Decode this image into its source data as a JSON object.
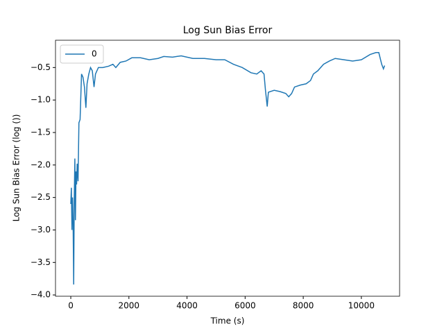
{
  "chart_data": {
    "type": "line",
    "title": "Log Sun Bias Error",
    "x_label": "Time (s)",
    "y_label": "Log Sun Bias Error (log ())",
    "x": [
      0,
      20,
      40,
      60,
      80,
      100,
      120,
      140,
      160,
      180,
      200,
      220,
      250,
      280,
      320,
      370,
      420,
      470,
      520,
      560,
      620,
      680,
      740,
      800,
      850,
      950,
      1100,
      1300,
      1450,
      1550,
      1700,
      1900,
      2100,
      2400,
      2700,
      3000,
      3200,
      3500,
      3800,
      4200,
      4600,
      5000,
      5300,
      5600,
      5900,
      6200,
      6400,
      6550,
      6650,
      6700,
      6760,
      6800,
      7000,
      7200,
      7400,
      7500,
      7600,
      7700,
      7900,
      8100,
      8250,
      8350,
      8500,
      8700,
      8900,
      9100,
      9400,
      9700,
      10000,
      10300,
      10500,
      10600,
      10700,
      10760,
      10800
    ],
    "series": [
      {
        "name": "0",
        "color": "#1f77b4",
        "values": [
          -2.6,
          -2.35,
          -3.0,
          -2.5,
          -2.9,
          -3.84,
          -2.5,
          -1.9,
          -2.85,
          -2.1,
          -2.3,
          -1.98,
          -2.25,
          -1.35,
          -1.3,
          -0.6,
          -0.65,
          -0.8,
          -1.12,
          -0.75,
          -0.6,
          -0.5,
          -0.55,
          -0.8,
          -0.6,
          -0.5,
          -0.5,
          -0.48,
          -0.45,
          -0.5,
          -0.42,
          -0.4,
          -0.35,
          -0.35,
          -0.38,
          -0.36,
          -0.33,
          -0.34,
          -0.32,
          -0.36,
          -0.36,
          -0.38,
          -0.38,
          -0.45,
          -0.5,
          -0.58,
          -0.6,
          -0.55,
          -0.6,
          -0.85,
          -1.1,
          -0.88,
          -0.85,
          -0.87,
          -0.9,
          -0.95,
          -0.9,
          -0.8,
          -0.77,
          -0.75,
          -0.7,
          -0.6,
          -0.55,
          -0.45,
          -0.4,
          -0.36,
          -0.38,
          -0.4,
          -0.38,
          -0.3,
          -0.27,
          -0.27,
          -0.45,
          -0.52,
          -0.47
        ]
      }
    ],
    "xlim": [
      -526,
      11316
    ],
    "ylim": [
      -4.02,
      -0.08
    ],
    "xticks": [
      0,
      2000,
      4000,
      6000,
      8000,
      10000
    ],
    "yticks": [
      {
        "value": -0.5,
        "label": "−0.5"
      },
      {
        "value": -1.0,
        "label": "−1.0"
      },
      {
        "value": -1.5,
        "label": "−1.5"
      },
      {
        "value": -2.0,
        "label": "−2.0"
      },
      {
        "value": -2.5,
        "label": "−2.5"
      },
      {
        "value": -3.0,
        "label": "−3.0"
      },
      {
        "value": -3.5,
        "label": "−3.5"
      },
      {
        "value": -4.0,
        "label": "−4.0"
      }
    ],
    "legend": "upper left",
    "grid": false
  }
}
